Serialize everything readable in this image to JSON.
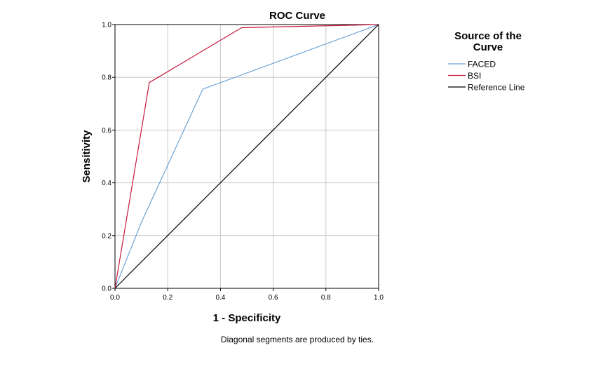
{
  "chart_data": {
    "type": "line",
    "title": "ROC Curve",
    "xlabel": "1 - Specificity",
    "ylabel": "Sensitivity",
    "xlim": [
      0,
      1
    ],
    "ylim": [
      0,
      1
    ],
    "x_ticks": [
      "0.0",
      "0.2",
      "0.4",
      "0.6",
      "0.8",
      "1.0"
    ],
    "y_ticks": [
      "0.0",
      "0.2",
      "0.4",
      "0.6",
      "0.8",
      "1.0"
    ],
    "grid": true,
    "legend": {
      "title_line1": "Source of the",
      "title_line2": "Curve",
      "placement": "right"
    },
    "series": [
      {
        "name": "FACED",
        "color": "#6fa3d8",
        "points": [
          [
            0,
            0
          ],
          [
            0.1,
            0.25
          ],
          [
            0.333,
            0.755
          ],
          [
            1,
            1
          ]
        ]
      },
      {
        "name": "BSI",
        "color": "#c8183f",
        "points": [
          [
            0,
            0
          ],
          [
            0.13,
            0.78
          ],
          [
            0.48,
            0.988
          ],
          [
            1,
            1
          ]
        ]
      },
      {
        "name": "Reference Line",
        "color": "#000000",
        "points": [
          [
            0,
            0
          ],
          [
            1,
            1
          ]
        ]
      }
    ],
    "footnote": "Diagonal segments are produced by ties."
  }
}
